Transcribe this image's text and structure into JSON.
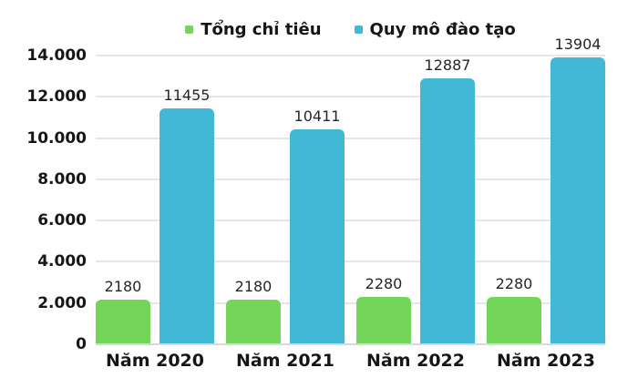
{
  "chart_data": {
    "type": "bar",
    "title": "",
    "xlabel": "",
    "ylabel": "",
    "categories": [
      "Năm 2020",
      "Năm 2021",
      "Năm 2022",
      "Năm 2023"
    ],
    "series": [
      {
        "name": "Tổng chỉ tiêu",
        "color": "#73D55A",
        "values": [
          2180,
          2180,
          2280,
          2280
        ]
      },
      {
        "name": "Quy mô đào tạo",
        "color": "#41B8D5",
        "values": [
          11455,
          10411,
          12887,
          13904
        ]
      }
    ],
    "ylim": [
      0,
      14000
    ],
    "yticks": [
      {
        "value": 0,
        "label": "0"
      },
      {
        "value": 2000,
        "label": "2.000"
      },
      {
        "value": 4000,
        "label": "4.000"
      },
      {
        "value": 6000,
        "label": "6.000"
      },
      {
        "value": 8000,
        "label": "8.000"
      },
      {
        "value": 10000,
        "label": "10.000"
      },
      {
        "value": 12000,
        "label": "12.000"
      },
      {
        "value": 14000,
        "label": "14.000"
      }
    ],
    "grid": true,
    "legend_position": "top",
    "data_labels": true
  },
  "colors": {
    "background": "#ffffff",
    "text": "#161616",
    "data_label": "#262626",
    "gridline": "#e6e6e6",
    "baseline": "#d9d9d9"
  }
}
